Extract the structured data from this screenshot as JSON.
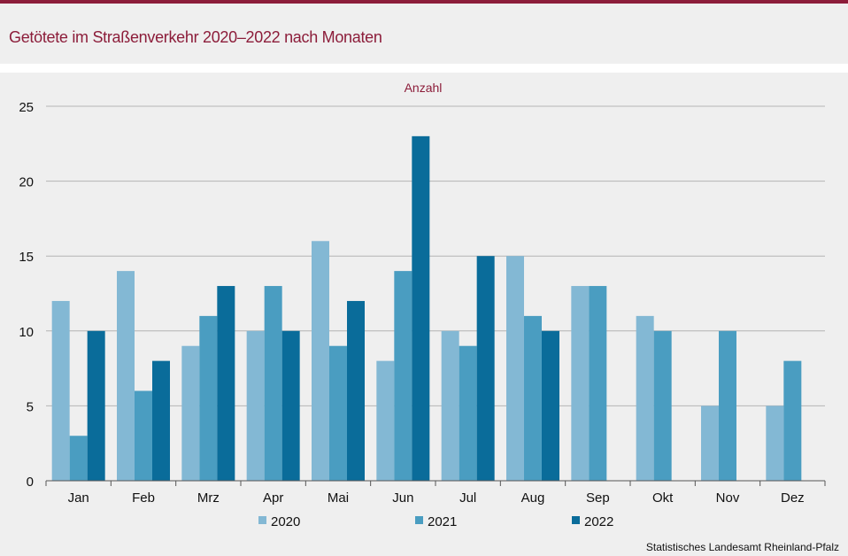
{
  "title": "Getötete im Straßenverkehr 2020–2022 nach Monaten",
  "source": "Statistisches Landesamt  Rheinland-Pfalz",
  "colors": {
    "accent": "#8c1d3a",
    "s2020": "#83b8d4",
    "s2021": "#4a9dc1",
    "s2022": "#0a6c9a",
    "grid": "#b4b4b4"
  },
  "chart_data": {
    "type": "bar",
    "title": "Getötete im Straßenverkehr 2020–2022 nach Monaten",
    "ylabel": "Anzahl",
    "xlabel": "",
    "ylim": [
      0,
      25
    ],
    "yticks": [
      0,
      5,
      10,
      15,
      20,
      25
    ],
    "grid": true,
    "legend": "bottom",
    "categories": [
      "Jan",
      "Feb",
      "Mrz",
      "Apr",
      "Mai",
      "Jun",
      "Jul",
      "Aug",
      "Sep",
      "Okt",
      "Nov",
      "Dez"
    ],
    "series": [
      {
        "name": "2020",
        "color": "#83b8d4",
        "values": [
          12,
          14,
          9,
          10,
          16,
          8,
          10,
          15,
          13,
          11,
          5,
          5
        ]
      },
      {
        "name": "2021",
        "color": "#4a9dc1",
        "values": [
          3,
          6,
          11,
          13,
          9,
          14,
          9,
          11,
          13,
          10,
          10,
          8
        ]
      },
      {
        "name": "2022",
        "color": "#0a6c9a",
        "values": [
          10,
          8,
          13,
          10,
          12,
          23,
          15,
          10,
          null,
          null,
          null,
          null
        ]
      }
    ]
  }
}
